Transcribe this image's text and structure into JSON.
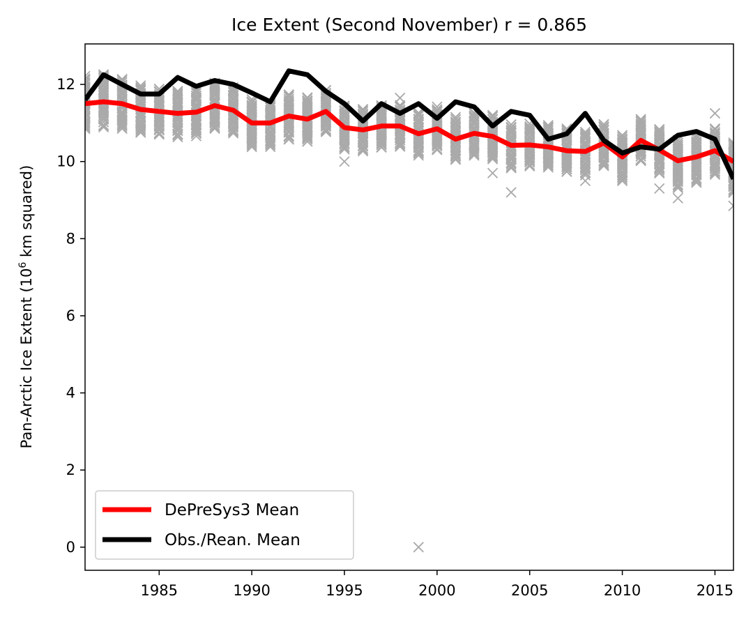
{
  "chart_data": {
    "type": "line",
    "title": "Ice Extent (Second November) r = 0.865",
    "ylabel_main": "Pan-Arctic Ice Extent (10",
    "ylabel_sup": "6",
    "ylabel_tail": " km squared)",
    "xlabel": "",
    "xlim": [
      1981,
      2016
    ],
    "ylim": [
      -0.6,
      13.05
    ],
    "x_ticks": [
      1985,
      1990,
      1995,
      2000,
      2005,
      2010,
      2015
    ],
    "y_ticks": [
      0,
      2,
      4,
      6,
      8,
      10,
      12
    ],
    "legend_position": "lower-left",
    "grid": false,
    "years": [
      1981,
      1982,
      1983,
      1984,
      1985,
      1986,
      1987,
      1988,
      1989,
      1990,
      1991,
      1992,
      1993,
      1994,
      1995,
      1996,
      1997,
      1998,
      1999,
      2000,
      2001,
      2002,
      2003,
      2004,
      2005,
      2006,
      2007,
      2008,
      2009,
      2010,
      2011,
      2012,
      2013,
      2014,
      2015,
      2016
    ],
    "series": [
      {
        "name": "DePreSys3 Mean",
        "color": "#ff0000",
        "values": [
          11.5,
          11.55,
          11.5,
          11.35,
          11.3,
          11.25,
          11.28,
          11.45,
          11.33,
          11.0,
          11.0,
          11.18,
          11.1,
          11.3,
          10.88,
          10.82,
          10.92,
          10.92,
          10.72,
          10.85,
          10.58,
          10.73,
          10.65,
          10.42,
          10.43,
          10.38,
          10.28,
          10.26,
          10.48,
          10.12,
          10.55,
          10.3,
          10.02,
          10.12,
          10.28,
          10.0
        ]
      },
      {
        "name": "Obs./Rean. Mean",
        "color": "#000000",
        "values": [
          11.6,
          12.25,
          12.0,
          11.75,
          11.75,
          12.18,
          11.95,
          12.1,
          12.0,
          11.78,
          11.55,
          12.35,
          12.25,
          11.82,
          11.5,
          11.05,
          11.5,
          11.25,
          11.5,
          11.12,
          11.55,
          11.42,
          10.92,
          11.3,
          11.2,
          10.58,
          10.72,
          11.25,
          10.55,
          10.22,
          10.38,
          10.32,
          10.68,
          10.78,
          10.58,
          9.55
        ]
      }
    ],
    "ensemble_color": "#aaaaaa",
    "ensemble_spread_low": [
      -0.65,
      -0.65,
      -0.65,
      -0.6,
      -0.6,
      -0.6,
      -0.6,
      -0.6,
      -0.6,
      -0.6,
      -0.6,
      -0.6,
      -0.6,
      -0.55,
      -0.55,
      -0.55,
      -0.55,
      -0.55,
      -0.55,
      -0.55,
      -0.55,
      -0.55,
      -0.6,
      -0.6,
      -0.55,
      -0.55,
      -0.55,
      -0.6,
      -0.6,
      -0.6,
      -0.55,
      -0.6,
      -0.7,
      -0.65,
      -0.6,
      -0.8
    ],
    "ensemble_spread_high": [
      0.7,
      0.7,
      0.65,
      0.6,
      0.6,
      0.6,
      0.6,
      0.6,
      0.6,
      0.6,
      0.55,
      0.55,
      0.55,
      0.55,
      0.55,
      0.55,
      0.55,
      0.55,
      0.55,
      0.55,
      0.55,
      0.55,
      0.55,
      0.55,
      0.55,
      0.55,
      0.55,
      0.5,
      0.5,
      0.55,
      0.55,
      0.55,
      0.55,
      0.55,
      0.55,
      0.5
    ],
    "ensemble_outliers": [
      {
        "x": 1999,
        "y": 0.0
      },
      {
        "x": 2004,
        "y": 9.2
      },
      {
        "x": 1998,
        "y": 11.65
      },
      {
        "x": 2015,
        "y": 11.25
      },
      {
        "x": 2012,
        "y": 9.3
      },
      {
        "x": 2008,
        "y": 9.5
      },
      {
        "x": 1995,
        "y": 10.0
      },
      {
        "x": 2003,
        "y": 9.7
      },
      {
        "x": 2013,
        "y": 9.05
      },
      {
        "x": 2016,
        "y": 8.85
      }
    ]
  }
}
